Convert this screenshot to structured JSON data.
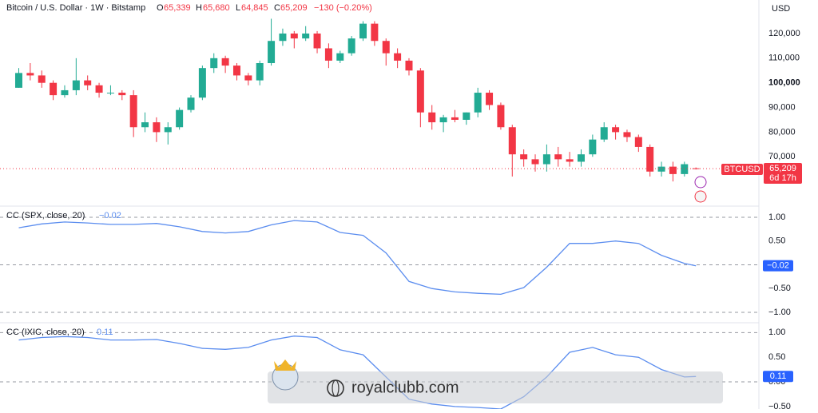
{
  "header": {
    "symbol": "Bitcoin / U.S. Dollar · 1W · Bitstamp",
    "o_key": "O",
    "o": "65,339",
    "h_key": "H",
    "h": "65,680",
    "l_key": "L",
    "l": "64,845",
    "c_key": "C",
    "c": "65,209",
    "change": "−130 (−0.20%)",
    "currency": "USD",
    "ticker": "BTCUSD",
    "price": "65,209",
    "countdown": "6d 17h",
    "watermark": "royalclubb.com"
  },
  "chart_data": [
    {
      "type": "candlestick",
      "up_color": "#22ab94",
      "down_color": "#f23645",
      "open": [
        98000,
        104000,
        103000,
        100000,
        95000,
        97000,
        101000,
        99000,
        96000,
        96000,
        95000,
        82000,
        84000,
        80000,
        82000,
        89000,
        94000,
        106000,
        110000,
        107000,
        103000,
        101000,
        108000,
        117000,
        120000,
        118000,
        120000,
        114000,
        109000,
        112000,
        118000,
        124000,
        117000,
        112000,
        109000,
        105000,
        88000,
        84000,
        86000,
        85000,
        88000,
        96000,
        91000,
        82000,
        71000,
        69000,
        67000,
        71000,
        69000,
        68000,
        71000,
        77000,
        82000,
        80000,
        78000,
        74000,
        64000,
        66000,
        63000,
        65339
      ],
      "high": [
        106000,
        108000,
        105000,
        101000,
        99000,
        110000,
        103000,
        100000,
        99000,
        97000,
        97000,
        88000,
        86000,
        84000,
        90000,
        95000,
        107000,
        112000,
        111000,
        108000,
        104000,
        109000,
        126000,
        122000,
        121000,
        123000,
        121000,
        116000,
        113000,
        119000,
        125000,
        125000,
        118000,
        114000,
        110000,
        106000,
        91000,
        87000,
        89000,
        88000,
        98000,
        97000,
        92000,
        83000,
        73000,
        71000,
        75000,
        74000,
        72000,
        73000,
        79000,
        84000,
        83000,
        81000,
        79000,
        75000,
        68000,
        68000,
        68000,
        65680
      ],
      "low": [
        98000,
        101000,
        98000,
        93000,
        94000,
        95000,
        97000,
        94000,
        95000,
        93000,
        78000,
        80000,
        76000,
        75000,
        81000,
        88000,
        93000,
        104000,
        104000,
        101000,
        99000,
        99000,
        107000,
        115000,
        114000,
        117000,
        112000,
        106000,
        108000,
        111000,
        117000,
        115000,
        107000,
        106000,
        103000,
        82000,
        81000,
        80000,
        84000,
        83000,
        86000,
        89000,
        81000,
        62000,
        66000,
        64000,
        64000,
        66000,
        66000,
        66000,
        70000,
        76000,
        77000,
        76000,
        72000,
        62000,
        62000,
        60000,
        62000,
        64845
      ],
      "close": [
        104000,
        103000,
        100000,
        95000,
        97000,
        101000,
        99000,
        96000,
        96000,
        95000,
        82000,
        84000,
        80000,
        82000,
        89000,
        94000,
        106000,
        110000,
        107000,
        103000,
        101000,
        108000,
        117000,
        120000,
        118000,
        120000,
        114000,
        109000,
        112000,
        118000,
        124000,
        117000,
        112000,
        109000,
        105000,
        88000,
        84000,
        86000,
        85000,
        88000,
        96000,
        91000,
        82000,
        71000,
        69000,
        67000,
        71000,
        69000,
        68000,
        71000,
        77000,
        82000,
        80000,
        78000,
        74000,
        64000,
        66000,
        63000,
        67000,
        65209
      ],
      "xlim": [
        -0.8,
        64
      ],
      "ylim": [
        50000,
        133600
      ],
      "yticks": [
        {
          "value": 70000,
          "label": "70,000"
        },
        {
          "value": 80000,
          "label": "80,000"
        },
        {
          "value": 90000,
          "label": "90,000"
        },
        {
          "value": 100000,
          "label": "100,000"
        },
        {
          "value": 110000,
          "label": "110,000"
        },
        {
          "value": 120000,
          "label": "120,000"
        }
      ]
    },
    {
      "type": "line",
      "title": "CC (SPX, close, 20)",
      "color": "#5b8def",
      "last_label": "−0.02",
      "x": [
        0,
        2,
        4,
        6,
        8,
        10,
        12,
        14,
        16,
        18,
        20,
        22,
        24,
        26,
        28,
        30,
        32,
        34,
        36,
        38,
        40,
        42,
        44,
        46,
        48,
        50,
        52,
        54,
        56,
        58,
        59
      ],
      "values": [
        0.78,
        0.86,
        0.9,
        0.88,
        0.85,
        0.85,
        0.87,
        0.8,
        0.7,
        0.67,
        0.7,
        0.84,
        0.93,
        0.9,
        0.68,
        0.62,
        0.25,
        -0.35,
        -0.5,
        -0.57,
        -0.6,
        -0.62,
        -0.48,
        -0.05,
        0.45,
        0.45,
        0.5,
        0.45,
        0.2,
        0.03,
        -0.02
      ],
      "xlim": [
        -0.8,
        64
      ],
      "ylim": [
        -1.185,
        1.235
      ],
      "yticks": [
        {
          "value": 1,
          "label": "1.00"
        },
        {
          "value": 0.5,
          "label": "0.50"
        },
        {
          "value": -0.5,
          "label": "−0.50"
        },
        {
          "value": -1,
          "label": "−1.00"
        }
      ],
      "dashed_levels": [
        1,
        0,
        -1
      ]
    },
    {
      "type": "line",
      "title": "CC (IXIC, close, 20)",
      "color": "#5b8def",
      "last_label": "0.11",
      "x": [
        0,
        2,
        4,
        6,
        8,
        10,
        12,
        14,
        16,
        18,
        20,
        22,
        24,
        26,
        28,
        30,
        32,
        34,
        36,
        38,
        40,
        42,
        44,
        46,
        48,
        50,
        52,
        54,
        56,
        58,
        59
      ],
      "values": [
        0.85,
        0.9,
        0.92,
        0.9,
        0.85,
        0.85,
        0.86,
        0.78,
        0.68,
        0.66,
        0.7,
        0.85,
        0.93,
        0.9,
        0.65,
        0.55,
        0.1,
        -0.35,
        -0.45,
        -0.5,
        -0.52,
        -0.55,
        -0.3,
        0.1,
        0.6,
        0.7,
        0.55,
        0.5,
        0.25,
        0.1,
        0.11
      ],
      "xlim": [
        -0.8,
        64
      ],
      "ylim": [
        -0.55,
        1.2
      ],
      "yticks": [
        {
          "value": 1,
          "label": "1.00"
        },
        {
          "value": 0.5,
          "label": "0.50"
        },
        {
          "value": 0,
          "label": "0.00"
        },
        {
          "value": -0.5,
          "label": "−0.50"
        }
      ],
      "dashed_levels": [
        1,
        0
      ]
    }
  ]
}
